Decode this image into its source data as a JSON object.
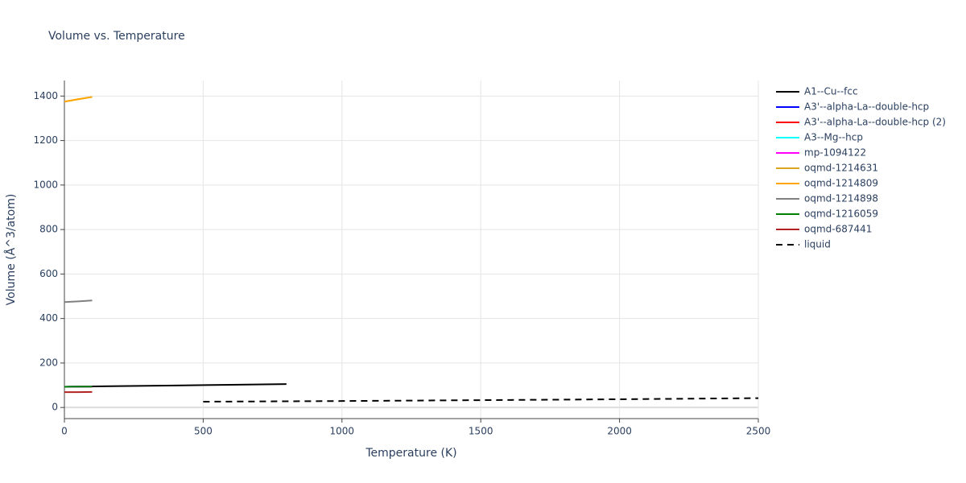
{
  "chart_data": {
    "type": "line",
    "title": "Volume vs. Temperature",
    "x_label": "Temperature (K)",
    "y_label": "Volume (Å^3/atom)",
    "xlim": [
      0,
      2500
    ],
    "xticks": [
      0,
      500,
      1000,
      1500,
      2000,
      2500
    ],
    "ylim": [
      -50,
      1470
    ],
    "yticks": [
      0,
      200,
      400,
      600,
      800,
      1000,
      1200,
      1400
    ],
    "grid": true,
    "legend": "right",
    "series": [
      {
        "name": "A1--Cu--fcc",
        "color": "#000000",
        "x": [
          0,
          200,
          400,
          600,
          800
        ],
        "values": [
          93,
          96,
          99,
          102,
          105
        ]
      },
      {
        "name": "A3'--alpha-La--double-hcp",
        "color": "#0000ff",
        "x": [
          0,
          50,
          100
        ],
        "values": [
          93,
          94,
          94
        ]
      },
      {
        "name": "A3'--alpha-La--double-hcp (2)",
        "color": "#ff0000",
        "x": [
          0,
          50,
          100
        ],
        "values": [
          93,
          94,
          94
        ]
      },
      {
        "name": "A3--Mg--hcp",
        "color": "#00ffff",
        "x": [
          0,
          50,
          100
        ],
        "values": [
          93,
          94,
          94
        ]
      },
      {
        "name": "mp-1094122",
        "color": "#ff00ff",
        "x": [
          0,
          50,
          100
        ],
        "values": [
          93,
          94,
          94
        ]
      },
      {
        "name": "oqmd-1214631",
        "color": "#daa520",
        "x": [
          0,
          50,
          100
        ],
        "values": [
          1375,
          1386,
          1396
        ]
      },
      {
        "name": "oqmd-1214809",
        "color": "#ffa500",
        "x": [
          0,
          50,
          100
        ],
        "values": [
          1375,
          1386,
          1396
        ]
      },
      {
        "name": "oqmd-1214898",
        "color": "#808080",
        "x": [
          0,
          50,
          100
        ],
        "values": [
          474,
          477,
          481
        ]
      },
      {
        "name": "oqmd-1216059",
        "color": "#008000",
        "x": [
          0,
          50,
          100
        ],
        "values": [
          93,
          94,
          94
        ]
      },
      {
        "name": "oqmd-687441",
        "color": "#b22222",
        "x": [
          0,
          50,
          100
        ],
        "values": [
          69,
          69,
          70
        ]
      },
      {
        "name": "liquid",
        "color": "#000000",
        "dash": true,
        "x": [
          500,
          1000,
          1500,
          2000,
          2500
        ],
        "values": [
          26,
          29,
          33,
          37,
          42
        ]
      }
    ]
  }
}
